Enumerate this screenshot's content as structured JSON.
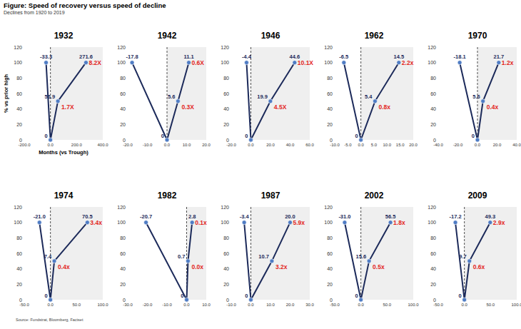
{
  "title": "Figure: Speed of recovery versus speed of decline",
  "subtitle": "Declines from 1920 to 2019",
  "source": "Source: Fundstrat, Bloomberg, Factset",
  "chart_data": [
    {
      "type": "line",
      "title": "1932",
      "x": [
        -33.3,
        0,
        56.9,
        271.6
      ],
      "values": [
        100,
        0,
        50,
        100
      ],
      "x_labels": [
        "-33.3",
        "0",
        "56.9",
        "271.6"
      ],
      "annotations": [
        "1.7X",
        "8.2X"
      ],
      "color": "#1c2a5a",
      "marker": "circle",
      "y_label": "% vs prior high",
      "x_label": "Months (vs Trough)",
      "xlim": [
        -200,
        400
      ],
      "xticks": [
        {
          "value": -200,
          "label": "-200.0"
        },
        {
          "value": 0,
          "label": "0.0"
        },
        {
          "value": 200,
          "label": "200.0"
        },
        {
          "value": 400,
          "label": "400.0"
        }
      ],
      "ylim": [
        0,
        120
      ],
      "yticks": [
        0,
        20,
        40,
        60,
        80,
        100,
        120
      ]
    },
    {
      "type": "line",
      "title": "1942",
      "x": [
        -17.8,
        0,
        5.6,
        11.1
      ],
      "values": [
        100,
        0,
        50,
        100
      ],
      "x_labels": [
        "-17.8",
        "0",
        "5.6",
        "11.1"
      ],
      "annotations": [
        "0.3X",
        "0.6X"
      ],
      "color": "#1c2a5a",
      "marker": "circle",
      "xlim": [
        -20,
        20
      ],
      "xticks": [
        {
          "value": -20,
          "label": "-20.0"
        },
        {
          "value": -10,
          "label": "-10.0"
        },
        {
          "value": 0,
          "label": "0.0"
        },
        {
          "value": 10,
          "label": "10.0"
        },
        {
          "value": 20,
          "label": "20.0"
        }
      ],
      "ylim": [
        0,
        120
      ],
      "yticks": [
        0,
        20,
        40,
        60,
        80,
        100,
        120
      ]
    },
    {
      "type": "line",
      "title": "1946",
      "x": [
        -4.4,
        0,
        19.9,
        44.6
      ],
      "values": [
        100,
        0,
        50,
        100
      ],
      "x_labels": [
        "-4.4",
        "0",
        "19.9",
        "44.6"
      ],
      "annotations": [
        "4.5X",
        "10.1X"
      ],
      "color": "#1c2a5a",
      "marker": "circle",
      "xlim": [
        -20,
        60
      ],
      "xticks": [
        {
          "value": -20,
          "label": "-20.0"
        },
        {
          "value": 0,
          "label": "0.0"
        },
        {
          "value": 20,
          "label": "20.0"
        },
        {
          "value": 40,
          "label": "40.0"
        },
        {
          "value": 60,
          "label": "60.0"
        }
      ],
      "ylim": [
        0,
        120
      ],
      "yticks": [
        0,
        20,
        40,
        60,
        80,
        100,
        120
      ]
    },
    {
      "type": "line",
      "title": "1962",
      "x": [
        -6.5,
        0,
        5.4,
        14.5
      ],
      "values": [
        100,
        0,
        50,
        100
      ],
      "x_labels": [
        "-6.5",
        "0",
        "5.4",
        "14.5"
      ],
      "annotations": [
        "0.8x",
        "2.2x"
      ],
      "color": "#1c2a5a",
      "marker": "circle",
      "xlim": [
        -10,
        20
      ],
      "xticks": [
        {
          "value": -10,
          "label": "-10.0"
        },
        {
          "value": -5,
          "label": "-5.0"
        },
        {
          "value": 0,
          "label": "0.0"
        },
        {
          "value": 5,
          "label": "5.0"
        },
        {
          "value": 10,
          "label": "10.0"
        },
        {
          "value": 15,
          "label": "15.0"
        },
        {
          "value": 20,
          "label": "20.0"
        }
      ],
      "ylim": [
        0,
        120
      ],
      "yticks": [
        0,
        20,
        40,
        60,
        80,
        100,
        120
      ]
    },
    {
      "type": "line",
      "title": "1970",
      "x": [
        -18.1,
        0,
        5.6,
        21.7
      ],
      "values": [
        100,
        0,
        50,
        100
      ],
      "x_labels": [
        "-18.1",
        "0",
        "5.6",
        "21.7"
      ],
      "annotations": [
        "0.4x",
        "1.2x"
      ],
      "color": "#1c2a5a",
      "marker": "circle",
      "xlim": [
        -40,
        40
      ],
      "xticks": [
        {
          "value": -40,
          "label": "-40.0"
        },
        {
          "value": -20,
          "label": "-20.0"
        },
        {
          "value": 0,
          "label": "0.0"
        },
        {
          "value": 20,
          "label": "20.0"
        },
        {
          "value": 40,
          "label": "40.0"
        }
      ],
      "ylim": [
        0,
        120
      ],
      "yticks": [
        0,
        20,
        40,
        60,
        80,
        100,
        120
      ]
    },
    {
      "type": "line",
      "title": "1974",
      "x": [
        -21.0,
        0,
        7.4,
        70.5
      ],
      "values": [
        100,
        0,
        50,
        100
      ],
      "x_labels": [
        "-21.0",
        "0",
        "7.4",
        "70.5"
      ],
      "annotations": [
        "0.4x",
        "3.4x"
      ],
      "color": "#1c2a5a",
      "marker": "circle",
      "xlim": [
        -50,
        100
      ],
      "xticks": [
        {
          "value": -50,
          "label": "-50.0"
        },
        {
          "value": 0,
          "label": "0.0"
        },
        {
          "value": 50,
          "label": "50.0"
        },
        {
          "value": 100,
          "label": "100.0"
        }
      ],
      "ylim": [
        0,
        120
      ],
      "yticks": [
        0,
        20,
        40,
        60,
        80,
        100,
        120
      ]
    },
    {
      "type": "line",
      "title": "1982",
      "x": [
        -20.7,
        0,
        0.7,
        2.8
      ],
      "values": [
        100,
        0,
        50,
        100
      ],
      "x_labels": [
        "-20.7",
        "0",
        "0.7",
        "2.8"
      ],
      "annotations": [
        "0.0x",
        "0.1x"
      ],
      "color": "#1c2a5a",
      "marker": "circle",
      "xlim": [
        -30,
        10
      ],
      "xticks": [
        {
          "value": -30,
          "label": "-30.0"
        },
        {
          "value": -20,
          "label": "-20.0"
        },
        {
          "value": -10,
          "label": "-10.0"
        },
        {
          "value": 0,
          "label": "0.0"
        },
        {
          "value": 10,
          "label": "10.0"
        }
      ],
      "ylim": [
        0,
        120
      ],
      "yticks": [
        0,
        20,
        40,
        60,
        80,
        100,
        120
      ]
    },
    {
      "type": "line",
      "title": "1987",
      "x": [
        -3.4,
        0,
        10.7,
        20.0
      ],
      "values": [
        100,
        0,
        50,
        100
      ],
      "x_labels": [
        "-3.4",
        "0",
        "10.7",
        "20.0"
      ],
      "annotations": [
        "3.2x",
        "5.9x"
      ],
      "color": "#1c2a5a",
      "marker": "circle",
      "xlim": [
        -10,
        30
      ],
      "xticks": [
        {
          "value": -10,
          "label": "-10.0"
        },
        {
          "value": 0,
          "label": "0.0"
        },
        {
          "value": 10,
          "label": "10.0"
        },
        {
          "value": 20,
          "label": "20.0"
        },
        {
          "value": 30,
          "label": "30.0"
        }
      ],
      "ylim": [
        0,
        120
      ],
      "yticks": [
        0,
        20,
        40,
        60,
        80,
        100,
        120
      ]
    },
    {
      "type": "line",
      "title": "2002",
      "x": [
        -31.0,
        0,
        15.6,
        56.5
      ],
      "values": [
        100,
        0,
        50,
        100
      ],
      "x_labels": [
        "-31.0",
        "0",
        "15.6",
        "56.5"
      ],
      "annotations": [
        "0.5x",
        "1.8x"
      ],
      "color": "#1c2a5a",
      "marker": "circle",
      "xlim": [
        -50,
        100
      ],
      "xticks": [
        {
          "value": -50,
          "label": "-50.0"
        },
        {
          "value": 0,
          "label": "0.0"
        },
        {
          "value": 50,
          "label": "50.0"
        },
        {
          "value": 100,
          "label": "100.0"
        }
      ],
      "ylim": [
        0,
        120
      ],
      "yticks": [
        0,
        20,
        40,
        60,
        80,
        100,
        120
      ]
    },
    {
      "type": "line",
      "title": "2009",
      "x": [
        -17.2,
        0,
        9.7,
        49.3
      ],
      "values": [
        100,
        0,
        50,
        100
      ],
      "x_labels": [
        "-17.2",
        "0",
        "9.7",
        "49.3"
      ],
      "annotations": [
        "0.6x",
        "2.9x"
      ],
      "color": "#1c2a5a",
      "marker": "circle",
      "xlim": [
        -50,
        100
      ],
      "xticks": [
        {
          "value": -50,
          "label": "-50.0"
        },
        {
          "value": 0,
          "label": "0.0"
        },
        {
          "value": 50,
          "label": "50.0"
        },
        {
          "value": 100,
          "label": "100.0"
        }
      ],
      "ylim": [
        0,
        120
      ],
      "yticks": [
        0,
        20,
        40,
        60,
        80,
        100,
        120
      ]
    }
  ]
}
